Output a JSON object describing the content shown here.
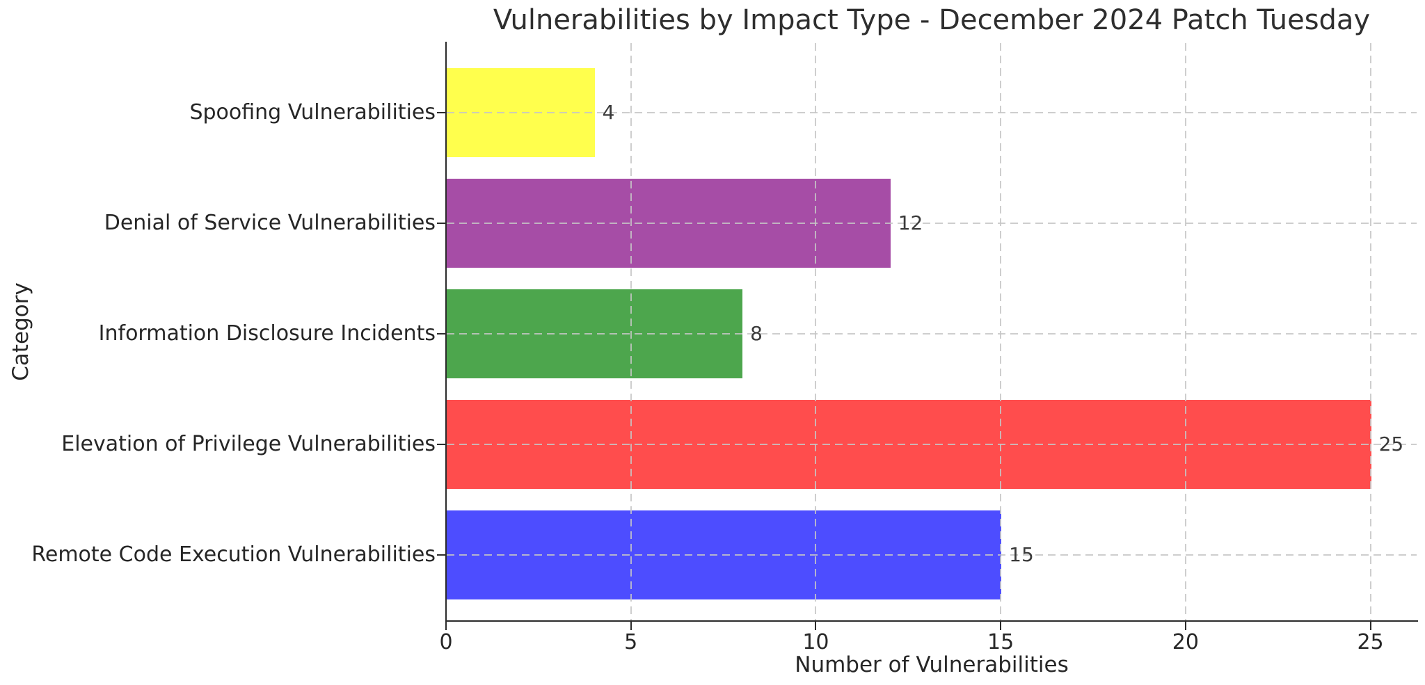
{
  "chart_data": {
    "type": "bar",
    "orientation": "horizontal",
    "title": "Vulnerabilities by Impact Type - December 2024 Patch Tuesday",
    "xlabel": "Number of Vulnerabilities",
    "ylabel": "Category",
    "categories": [
      "Spoofing Vulnerabilities",
      "Denial of Service Vulnerabilities",
      "Information Disclosure Incidents",
      "Elevation of Privilege Vulnerabilities",
      "Remote Code Execution Vulnerabilities"
    ],
    "values": [
      4,
      12,
      8,
      25,
      15
    ],
    "value_labels": [
      "4",
      "12",
      "8",
      "25",
      "15"
    ],
    "bar_colors": [
      "#ffff4d",
      "#a64da6",
      "#4da64d",
      "#ff4d4d",
      "#4d4dff"
    ],
    "xticks": [
      0,
      5,
      10,
      15,
      20,
      25
    ],
    "xlim": [
      0,
      26.25
    ],
    "grid": "dashed-both-axes",
    "grid_color": "#c6c6c6",
    "text_color": "#262626",
    "background_color": "#ffffff",
    "legend": "none"
  }
}
